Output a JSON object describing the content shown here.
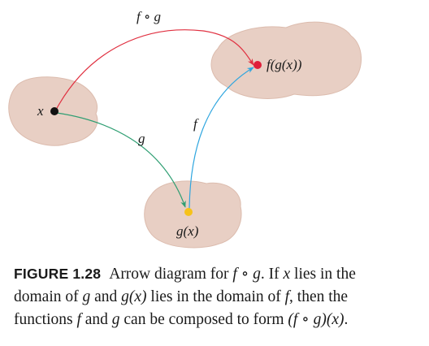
{
  "diagram": {
    "labels": {
      "composition": "f ∘ g",
      "x": "x",
      "g": "g",
      "f": "f",
      "gx": "g(x)",
      "fgx": "f(g(x))"
    },
    "colors": {
      "blob_fill": "#e8cfc4",
      "blob_edge": "#d9b9ab",
      "arrow_composition": "#e03040",
      "arrow_g": "#2e9e72",
      "arrow_f": "#2fa6df",
      "dot_x": "#111111",
      "dot_gx": "#f6c21a",
      "dot_fgx": "#e01e3a"
    }
  },
  "caption": {
    "figure_label": "FIGURE 1.28",
    "line1_a": "Arrow diagram for ",
    "line1_f": "f",
    "line1_b": " ∘ ",
    "line1_g": "g",
    "line1_c": ". If ",
    "line1_x": "x",
    "line1_d": " lies in the",
    "line2_a": "domain of ",
    "line2_g": "g",
    "line2_b": " and ",
    "line2_gx": "g(x)",
    "line2_c": " lies in the domain of ",
    "line2_f": "f",
    "line2_d": ", then the",
    "line3_a": "functions ",
    "line3_f": "f",
    "line3_b": " and ",
    "line3_g": "g",
    "line3_c": " can be composed to form ",
    "line3_fg": "(f ∘ g)(x)",
    "line3_d": "."
  }
}
